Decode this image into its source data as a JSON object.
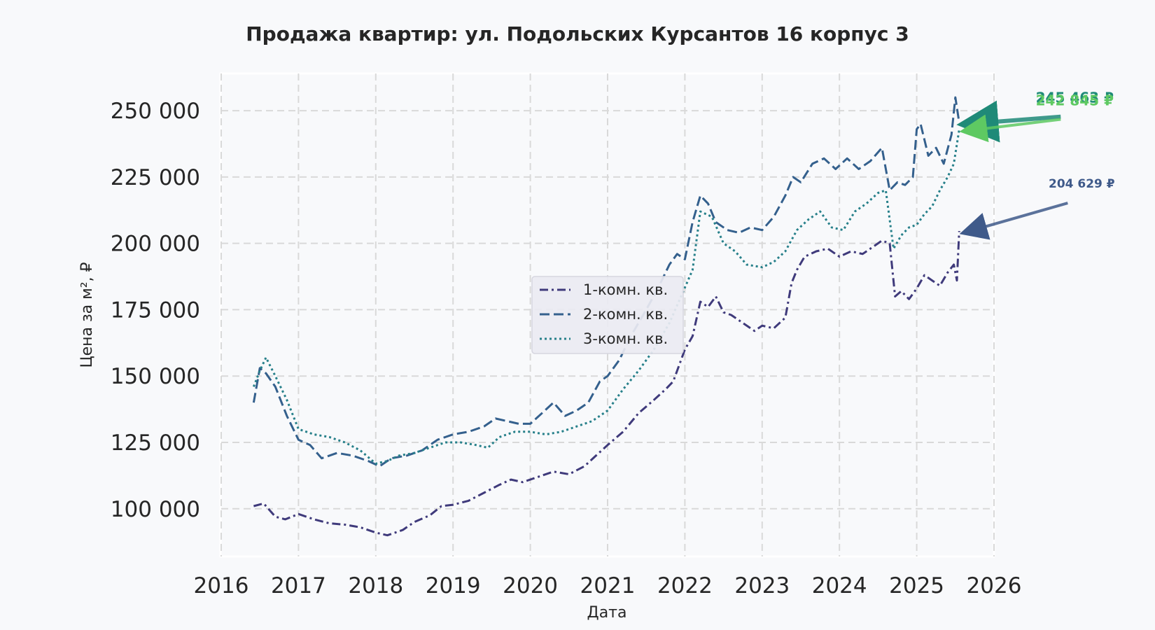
{
  "chart_data": {
    "type": "line",
    "title": "Продажа квартир: ул. Подольских Курсантов 16 корпус 3",
    "xlabel": "Дата",
    "ylabel": "Цена за м², ₽",
    "xlim": [
      2016.0,
      2026.0
    ],
    "ylim": [
      82000,
      264000
    ],
    "grid": true,
    "legend_position": "center",
    "x_ticks": [
      "2016",
      "2017",
      "2018",
      "2019",
      "2020",
      "2021",
      "2022",
      "2023",
      "2024",
      "2025",
      "2026"
    ],
    "y_ticks": [
      "100 000",
      "125 000",
      "150 000",
      "175 000",
      "200 000",
      "225 000",
      "250 000"
    ],
    "y_tick_values": [
      100000,
      125000,
      150000,
      175000,
      200000,
      225000,
      250000
    ],
    "series": [
      {
        "name": "1-комн. кв.",
        "color": "#3f3a7b",
        "dash": "dashdot",
        "x": [
          2016.42,
          2016.55,
          2016.7,
          2016.83,
          2017.0,
          2017.2,
          2017.4,
          2017.6,
          2017.8,
          2018.0,
          2018.15,
          2018.35,
          2018.5,
          2018.7,
          2018.85,
          2019.0,
          2019.2,
          2019.4,
          2019.6,
          2019.75,
          2019.9,
          2020.1,
          2020.3,
          2020.5,
          2020.7,
          2020.85,
          2021.0,
          2021.2,
          2021.4,
          2021.6,
          2021.75,
          2021.85,
          2022.0,
          2022.1,
          2022.2,
          2022.3,
          2022.4,
          2022.5,
          2022.6,
          2022.75,
          2022.9,
          2023.0,
          2023.15,
          2023.3,
          2023.38,
          2023.45,
          2023.55,
          2023.7,
          2023.85,
          2024.0,
          2024.15,
          2024.3,
          2024.45,
          2024.55,
          2024.65,
          2024.72,
          2024.8,
          2024.9,
          2025.0,
          2025.1,
          2025.2,
          2025.3,
          2025.4,
          2025.48,
          2025.52,
          2025.55
        ],
        "y": [
          101000,
          102000,
          97000,
          96000,
          98000,
          96000,
          94500,
          94000,
          93000,
          91000,
          90000,
          92000,
          95000,
          97500,
          101000,
          101500,
          103000,
          106000,
          109000,
          111000,
          110000,
          112000,
          114000,
          113000,
          116000,
          120000,
          124000,
          129000,
          136000,
          141000,
          145000,
          148000,
          160000,
          165000,
          178000,
          176000,
          180000,
          174000,
          173000,
          170000,
          167000,
          169000,
          168000,
          172000,
          185000,
          190000,
          195000,
          197000,
          198000,
          195000,
          197000,
          196000,
          199000,
          201000,
          200000,
          180000,
          182000,
          179000,
          183000,
          188000,
          186000,
          184000,
          189000,
          192000,
          186000,
          204629
        ]
      },
      {
        "name": "2-комн. кв.",
        "color": "#34608d",
        "dash": "dashed",
        "x": [
          2016.42,
          2016.5,
          2016.58,
          2016.7,
          2016.85,
          2017.0,
          2017.15,
          2017.3,
          2017.5,
          2017.7,
          2017.9,
          2018.05,
          2018.2,
          2018.4,
          2018.6,
          2018.8,
          2019.0,
          2019.2,
          2019.4,
          2019.55,
          2019.7,
          2019.85,
          2020.0,
          2020.15,
          2020.3,
          2020.45,
          2020.6,
          2020.75,
          2020.9,
          2021.0,
          2021.15,
          2021.3,
          2021.5,
          2021.65,
          2021.8,
          2021.9,
          2022.0,
          2022.1,
          2022.2,
          2022.3,
          2022.4,
          2022.55,
          2022.7,
          2022.85,
          2023.0,
          2023.15,
          2023.3,
          2023.4,
          2023.5,
          2023.65,
          2023.8,
          2023.95,
          2024.1,
          2024.25,
          2024.4,
          2024.55,
          2024.65,
          2024.75,
          2024.85,
          2024.95,
          2025.0,
          2025.05,
          2025.15,
          2025.25,
          2025.35,
          2025.45,
          2025.5,
          2025.55
        ],
        "y": [
          140000,
          153000,
          151000,
          146000,
          135000,
          126000,
          124000,
          119000,
          121000,
          120000,
          118000,
          116000,
          119000,
          120000,
          122000,
          126000,
          128000,
          129000,
          131000,
          134000,
          133000,
          132000,
          132000,
          136000,
          140000,
          135000,
          137000,
          140000,
          148000,
          150000,
          156000,
          165000,
          175000,
          183000,
          192000,
          196000,
          194000,
          208000,
          218000,
          215000,
          208000,
          205000,
          204000,
          206000,
          205000,
          210000,
          218000,
          225000,
          223000,
          230000,
          232000,
          228000,
          232000,
          228000,
          231000,
          236000,
          220000,
          223000,
          222000,
          225000,
          243000,
          245000,
          233000,
          236000,
          230000,
          241000,
          255000,
          245463
        ]
      },
      {
        "name": "3-комн. кв.",
        "color": "#27808a",
        "dash": "dotted",
        "x": [
          2016.42,
          2016.5,
          2016.58,
          2016.7,
          2016.85,
          2017.0,
          2017.2,
          2017.4,
          2017.6,
          2017.8,
          2018.0,
          2018.15,
          2018.3,
          2018.5,
          2018.7,
          2018.9,
          2019.1,
          2019.3,
          2019.45,
          2019.6,
          2019.8,
          2020.0,
          2020.2,
          2020.4,
          2020.6,
          2020.8,
          2021.0,
          2021.2,
          2021.4,
          2021.6,
          2021.8,
          2021.95,
          2022.1,
          2022.2,
          2022.35,
          2022.5,
          2022.65,
          2022.8,
          2023.0,
          2023.15,
          2023.3,
          2023.45,
          2023.6,
          2023.75,
          2023.9,
          2024.05,
          2024.2,
          2024.35,
          2024.5,
          2024.6,
          2024.7,
          2024.8,
          2024.9,
          2025.0,
          2025.1,
          2025.2,
          2025.3,
          2025.4,
          2025.48,
          2025.55
        ],
        "y": [
          146000,
          152000,
          157000,
          150000,
          141000,
          130000,
          128000,
          127000,
          125000,
          122000,
          117000,
          118000,
          120000,
          121000,
          123000,
          125000,
          125000,
          124000,
          123000,
          127000,
          129000,
          129000,
          128000,
          129000,
          131000,
          133000,
          137000,
          145000,
          152000,
          160000,
          170000,
          180000,
          190000,
          212000,
          210000,
          200000,
          197000,
          192000,
          191000,
          193000,
          197000,
          205000,
          209000,
          212000,
          206000,
          205000,
          212000,
          215000,
          219000,
          220000,
          198000,
          203000,
          206000,
          207000,
          211000,
          214000,
          220000,
          225000,
          230000,
          242845
        ]
      }
    ],
    "annotations": [
      {
        "text": "204 629 ₽",
        "series": "1-комн. кв.",
        "x": 2025.55,
        "y": 204629,
        "color": "#3f5a8a"
      },
      {
        "text": "245 463 ₽",
        "series": "2-комн. кв.",
        "x": 2025.55,
        "y": 245463,
        "color": "#1f8a78"
      },
      {
        "text": "242 845 ₽",
        "series": "3-комн. кв.",
        "x": 2025.55,
        "y": 242845,
        "color": "#5ec962"
      }
    ]
  }
}
